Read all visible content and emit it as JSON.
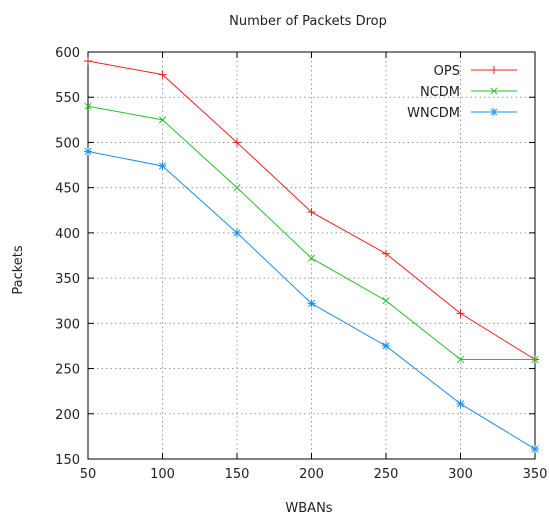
{
  "chart_data": {
    "type": "line",
    "title": "Number of Packets Drop",
    "xlabel": "WBANs",
    "ylabel": "Packets",
    "x": [
      50,
      100,
      150,
      200,
      250,
      300,
      350
    ],
    "xlim": [
      50,
      350
    ],
    "ylim": [
      150,
      600
    ],
    "xticks": [
      50,
      100,
      150,
      200,
      250,
      300,
      350
    ],
    "yticks": [
      150,
      200,
      250,
      300,
      350,
      400,
      450,
      500,
      550,
      600
    ],
    "grid": true,
    "legend_position": "top-right",
    "series": [
      {
        "name": "OPS",
        "color": "#e8241d",
        "marker": "plus",
        "values": [
          590,
          575,
          500,
          423,
          377,
          311,
          260
        ]
      },
      {
        "name": "NCDM",
        "color": "#2dbd2d",
        "marker": "cross",
        "values": [
          540,
          525,
          450,
          372,
          325,
          260,
          260
        ]
      },
      {
        "name": "WNCDM",
        "color": "#1f8fe8",
        "marker": "asterisk",
        "values": [
          490,
          474,
          400,
          322,
          275,
          211,
          161
        ]
      }
    ]
  }
}
